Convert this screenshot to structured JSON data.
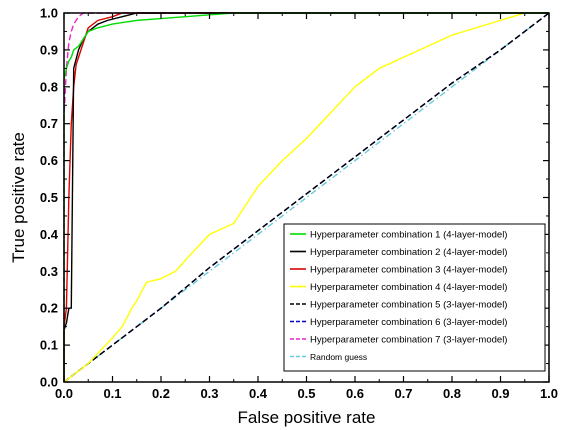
{
  "chart_data": {
    "type": "line",
    "title": "",
    "xlabel": "False positive rate",
    "ylabel": "True positive rate",
    "xlim": [
      0,
      1
    ],
    "ylim": [
      0,
      1
    ],
    "x_ticks": [
      "0.0",
      "0.1",
      "0.2",
      "0.3",
      "0.4",
      "0.5",
      "0.6",
      "0.7",
      "0.8",
      "0.9",
      "1.0"
    ],
    "y_ticks": [
      "0.0",
      "0.1",
      "0.2",
      "0.3",
      "0.4",
      "0.5",
      "0.6",
      "0.7",
      "0.8",
      "0.9",
      "1.0"
    ],
    "grid": false,
    "legend_position": "bottom-right",
    "series": [
      {
        "name": "Hyperparameter combination 1 (4-layer-model)",
        "color": "#00dd00",
        "dash": "solid",
        "points": [
          [
            0,
            0
          ],
          [
            0,
            0.82
          ],
          [
            0.005,
            0.85
          ],
          [
            0.01,
            0.87
          ],
          [
            0.015,
            0.88
          ],
          [
            0.02,
            0.9
          ],
          [
            0.03,
            0.91
          ],
          [
            0.04,
            0.93
          ],
          [
            0.05,
            0.95
          ],
          [
            0.07,
            0.96
          ],
          [
            0.1,
            0.97
          ],
          [
            0.15,
            0.98
          ],
          [
            0.2,
            0.985
          ],
          [
            0.25,
            0.99
          ],
          [
            0.3,
            0.995
          ],
          [
            0.35,
            1.0
          ],
          [
            1,
            1
          ]
        ]
      },
      {
        "name": "Hyperparameter combination 2 (4-layer-model)",
        "color": "#000000",
        "dash": "solid",
        "points": [
          [
            0,
            0
          ],
          [
            0,
            0.14
          ],
          [
            0.005,
            0.16
          ],
          [
            0.01,
            0.2
          ],
          [
            0.015,
            0.2
          ],
          [
            0.02,
            0.85
          ],
          [
            0.03,
            0.9
          ],
          [
            0.04,
            0.93
          ],
          [
            0.05,
            0.95
          ],
          [
            0.07,
            0.97
          ],
          [
            0.09,
            0.98
          ],
          [
            0.12,
            0.99
          ],
          [
            0.15,
            1.0
          ],
          [
            1,
            1
          ]
        ]
      },
      {
        "name": "Hyperparameter combination 3 (4-layer-model)",
        "color": "#dd0000",
        "dash": "solid",
        "points": [
          [
            0,
            0
          ],
          [
            0,
            0.15
          ],
          [
            0.005,
            0.2
          ],
          [
            0.01,
            0.5
          ],
          [
            0.015,
            0.7
          ],
          [
            0.02,
            0.8
          ],
          [
            0.025,
            0.86
          ],
          [
            0.03,
            0.88
          ],
          [
            0.04,
            0.92
          ],
          [
            0.05,
            0.96
          ],
          [
            0.07,
            0.98
          ],
          [
            0.1,
            0.99
          ],
          [
            0.12,
            1.0
          ],
          [
            1,
            1
          ]
        ]
      },
      {
        "name": "Hyperparameter combination 4 (4-layer-model)",
        "color": "#ffff00",
        "dash": "solid",
        "points": [
          [
            0,
            0
          ],
          [
            0.05,
            0.05
          ],
          [
            0.1,
            0.12
          ],
          [
            0.12,
            0.15
          ],
          [
            0.14,
            0.2
          ],
          [
            0.15,
            0.22
          ],
          [
            0.17,
            0.27
          ],
          [
            0.2,
            0.28
          ],
          [
            0.23,
            0.3
          ],
          [
            0.25,
            0.33
          ],
          [
            0.3,
            0.4
          ],
          [
            0.35,
            0.43
          ],
          [
            0.4,
            0.53
          ],
          [
            0.45,
            0.6
          ],
          [
            0.5,
            0.66
          ],
          [
            0.55,
            0.73
          ],
          [
            0.6,
            0.8
          ],
          [
            0.65,
            0.85
          ],
          [
            0.7,
            0.88
          ],
          [
            0.75,
            0.91
          ],
          [
            0.8,
            0.94
          ],
          [
            0.85,
            0.96
          ],
          [
            0.9,
            0.98
          ],
          [
            0.95,
            1.0
          ],
          [
            1,
            1
          ]
        ]
      },
      {
        "name": "Hyperparameter combination 5 (3-layer-model)",
        "color": "#000000",
        "dash": "dashed",
        "points": [
          [
            0,
            0
          ],
          [
            0.1,
            0.1
          ],
          [
            0.2,
            0.2
          ],
          [
            0.3,
            0.31
          ],
          [
            0.4,
            0.41
          ],
          [
            0.5,
            0.51
          ],
          [
            0.6,
            0.61
          ],
          [
            0.7,
            0.71
          ],
          [
            0.8,
            0.81
          ],
          [
            0.9,
            0.9
          ],
          [
            0.95,
            0.95
          ],
          [
            1,
            1
          ]
        ]
      },
      {
        "name": "Hyperparameter combination 6 (3-layer-model)",
        "color": "#0000cc",
        "dash": "dashed",
        "points": [
          [
            0,
            0
          ],
          [
            0.1,
            0.1
          ],
          [
            0.2,
            0.2
          ],
          [
            0.3,
            0.31
          ],
          [
            0.4,
            0.41
          ],
          [
            0.5,
            0.51
          ],
          [
            0.6,
            0.61
          ],
          [
            0.7,
            0.71
          ],
          [
            0.8,
            0.81
          ],
          [
            0.9,
            0.9
          ],
          [
            0.95,
            0.95
          ],
          [
            1,
            1
          ]
        ]
      },
      {
        "name": "Hyperparameter combination 7 (3-layer-model)",
        "color": "#ee22cc",
        "dash": "dashed",
        "points": [
          [
            0,
            0
          ],
          [
            0,
            0.72
          ],
          [
            0.005,
            0.85
          ],
          [
            0.01,
            0.92
          ],
          [
            0.015,
            0.95
          ],
          [
            0.02,
            0.97
          ],
          [
            0.03,
            0.99
          ],
          [
            0.04,
            1.0
          ],
          [
            1,
            1
          ]
        ]
      },
      {
        "name": "Random guess",
        "color": "#66ccdd",
        "dash": "dashdot",
        "points": [
          [
            0,
            0
          ],
          [
            1,
            1
          ]
        ]
      }
    ]
  }
}
